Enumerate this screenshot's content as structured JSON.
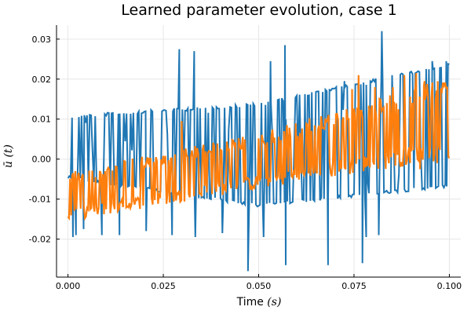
{
  "chart_data": {
    "type": "line",
    "title": "Learned parameter evolution, case 1",
    "xlabel_text": "Time",
    "xlabel_unit": "(s)",
    "ylabel_base": "ū",
    "ylabel_arg": "(t)",
    "xlim": [
      -0.003,
      0.103
    ],
    "ylim": [
      -0.0295,
      0.0335
    ],
    "xticks": [
      0.0,
      0.025,
      0.05,
      0.075,
      0.1
    ],
    "xtick_labels": [
      "0.000",
      "0.025",
      "0.050",
      "0.075",
      "0.100"
    ],
    "yticks": [
      -0.02,
      -0.01,
      0.0,
      0.01,
      0.02,
      0.03
    ],
    "ytick_labels": [
      "-0.02",
      "-0.01",
      "0.00",
      "0.01",
      "0.02",
      "0.03"
    ],
    "grid": true,
    "legend": "none",
    "series": [
      {
        "name": "series 1",
        "color": "#1f77b4",
        "upper_envelope": {
          "x": [
            0.0,
            0.05,
            0.1
          ],
          "y": [
            0.011,
            0.014,
            0.024
          ]
        },
        "lower_envelope": {
          "x": [
            0.0,
            0.05,
            0.1
          ],
          "y": [
            -0.005,
            -0.012,
            -0.007
          ]
        },
        "min_observed": -0.028,
        "max_observed": 0.032,
        "spikes": [
          {
            "x": 0.0013,
            "y": -0.0195
          },
          {
            "x": 0.0021,
            "y": -0.019
          },
          {
            "x": 0.0041,
            "y": -0.0175
          },
          {
            "x": 0.0089,
            "y": -0.019
          },
          {
            "x": 0.0135,
            "y": -0.019
          },
          {
            "x": 0.0205,
            "y": -0.018
          },
          {
            "x": 0.0273,
            "y": -0.019
          },
          {
            "x": 0.0292,
            "y": 0.0275
          },
          {
            "x": 0.0331,
            "y": 0.027
          },
          {
            "x": 0.0334,
            "y": -0.0195
          },
          {
            "x": 0.0405,
            "y": -0.0185
          },
          {
            "x": 0.0472,
            "y": -0.028
          },
          {
            "x": 0.0513,
            "y": -0.0195
          },
          {
            "x": 0.0531,
            "y": 0.0245
          },
          {
            "x": 0.0569,
            "y": 0.0285
          },
          {
            "x": 0.0571,
            "y": -0.0265
          },
          {
            "x": 0.0682,
            "y": -0.0265
          },
          {
            "x": 0.0725,
            "y": 0.0195
          },
          {
            "x": 0.0772,
            "y": -0.026
          },
          {
            "x": 0.0782,
            "y": -0.0195
          },
          {
            "x": 0.0815,
            "y": -0.019
          },
          {
            "x": 0.0823,
            "y": 0.032
          },
          {
            "x": 0.0955,
            "y": 0.0245
          },
          {
            "x": 0.0992,
            "y": 0.0245
          }
        ]
      },
      {
        "name": "series 2",
        "color": "#ff7f0e",
        "upper_envelope": {
          "x": [
            0.0,
            0.05,
            0.1
          ],
          "y": [
            -0.003,
            0.0065,
            0.0205
          ]
        },
        "lower_envelope": {
          "x": [
            0.0,
            0.05,
            0.1
          ],
          "y": [
            -0.0155,
            -0.0075,
            0.0
          ]
        },
        "min_observed": -0.0155,
        "max_observed": 0.022,
        "spikes": [
          {
            "x": 0.0215,
            "y": -0.002
          },
          {
            "x": 0.0298,
            "y": 0.0095
          },
          {
            "x": 0.0574,
            "y": 0.0085
          },
          {
            "x": 0.0745,
            "y": 0.0175
          },
          {
            "x": 0.0762,
            "y": 0.021
          },
          {
            "x": 0.0805,
            "y": 0.018
          },
          {
            "x": 0.0852,
            "y": 0.018
          },
          {
            "x": 0.0882,
            "y": 0.021
          },
          {
            "x": 0.0913,
            "y": 0.0215
          },
          {
            "x": 0.0935,
            "y": 0.0195
          },
          {
            "x": 0.0897,
            "y": -0.001
          },
          {
            "x": 0.0855,
            "y": 0.0015
          },
          {
            "x": 0.0923,
            "y": -0.0025
          },
          {
            "x": 0.0968,
            "y": -0.001
          }
        ]
      }
    ]
  }
}
